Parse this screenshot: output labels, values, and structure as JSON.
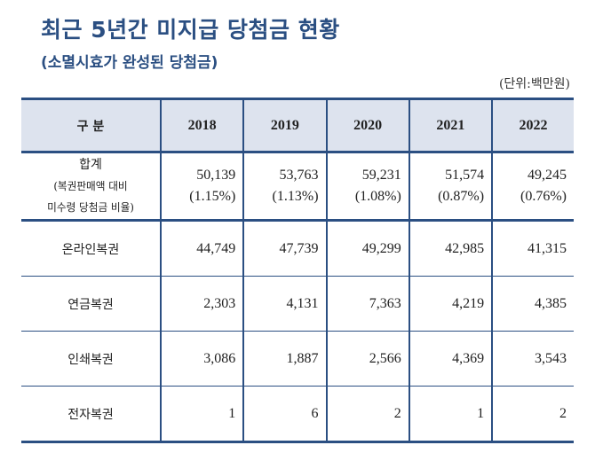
{
  "title": "최근 5년간 미지급 당첨금 현황",
  "subtitle": "(소멸시효가 완성된 당첨금)",
  "unit": "(단위:백만원)",
  "table": {
    "header": [
      "구 분",
      "2018",
      "2019",
      "2020",
      "2021",
      "2022"
    ],
    "total": {
      "label": "합계",
      "label_sub1": "(복권판매액 대비",
      "label_sub2": "미수령 당첨금 비율)",
      "values": [
        "50,139",
        "53,763",
        "59,231",
        "51,574",
        "49,245"
      ],
      "ratios": [
        "(1.15%)",
        "(1.13%)",
        "(1.08%)",
        "(0.87%)",
        "(0.76%)"
      ]
    },
    "rows": [
      {
        "label": "온라인복권",
        "values": [
          "44,749",
          "47,739",
          "49,299",
          "42,985",
          "41,315"
        ]
      },
      {
        "label": "연금복권",
        "values": [
          "2,303",
          "4,131",
          "7,363",
          "4,219",
          "4,385"
        ]
      },
      {
        "label": "인쇄복권",
        "values": [
          "3,086",
          "1,887",
          "2,566",
          "4,369",
          "3,543"
        ]
      },
      {
        "label": "전자복권",
        "values": [
          "1",
          "6",
          "2",
          "1",
          "2"
        ]
      }
    ]
  }
}
